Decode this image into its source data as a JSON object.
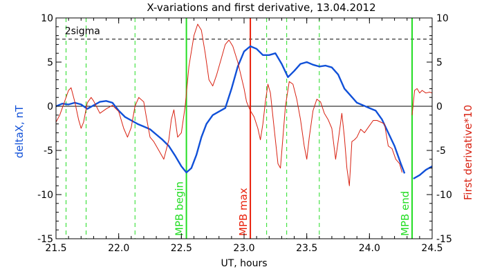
{
  "chart_data": {
    "type": "line",
    "title": "X-variations and first derivative, 13.04.2012",
    "xlabel": "UT, hours",
    "ylabel_left": "deltaX, nT",
    "ylabel_right": "First derivative*10",
    "xlim": [
      21.5,
      24.5
    ],
    "ylim": [
      -15,
      10
    ],
    "x_ticks": [
      "21.5",
      "22.0",
      "22.5",
      "23.0",
      "23.5",
      "24.0",
      "24.5"
    ],
    "y_ticks": [
      "-15",
      "-10",
      "-5",
      "0",
      "5",
      "10"
    ],
    "sigma_label": "2sigma",
    "sigma_value": 7.6,
    "colors": {
      "deltaX": "#1050d8",
      "derivative": "#d82010",
      "mpb": "#22dd22",
      "mpb_max": "#e8200a",
      "zero_line": "#000000",
      "sigma_line": "#000000"
    },
    "dashed_green_x": [
      21.58,
      21.74,
      22.13,
      23.18,
      23.34,
      23.6
    ],
    "markers": [
      {
        "x": 22.54,
        "label": "MPB begin",
        "color": "#22dd22"
      },
      {
        "x": 23.05,
        "label": "MPB max",
        "color": "#e8200a"
      },
      {
        "x": 24.34,
        "label": "MPB end",
        "color": "#22dd22"
      }
    ],
    "series": [
      {
        "name": "deltaX, nT",
        "color": "#1050d8",
        "segments": [
          [
            [
              21.5,
              0.0
            ],
            [
              21.55,
              0.3
            ],
            [
              21.6,
              0.2
            ],
            [
              21.65,
              0.4
            ],
            [
              21.7,
              0.2
            ],
            [
              21.75,
              -0.3
            ],
            [
              21.8,
              0.1
            ],
            [
              21.85,
              0.5
            ],
            [
              21.9,
              0.6
            ],
            [
              21.95,
              0.4
            ],
            [
              22.0,
              -0.5
            ],
            [
              22.05,
              -1.2
            ],
            [
              22.1,
              -1.6
            ],
            [
              22.15,
              -2.0
            ],
            [
              22.2,
              -2.3
            ],
            [
              22.25,
              -2.6
            ],
            [
              22.3,
              -3.2
            ],
            [
              22.35,
              -3.8
            ],
            [
              22.4,
              -4.5
            ],
            [
              22.45,
              -5.6
            ],
            [
              22.5,
              -6.8
            ],
            [
              22.54,
              -7.5
            ],
            [
              22.58,
              -7.0
            ],
            [
              22.62,
              -5.5
            ],
            [
              22.66,
              -3.5
            ],
            [
              22.7,
              -2.0
            ],
            [
              22.75,
              -1.0
            ],
            [
              22.8,
              -0.6
            ],
            [
              22.85,
              -0.2
            ],
            [
              22.9,
              2.0
            ],
            [
              22.95,
              4.5
            ],
            [
              23.0,
              6.2
            ],
            [
              23.05,
              6.8
            ],
            [
              23.1,
              6.5
            ],
            [
              23.15,
              5.8
            ],
            [
              23.2,
              5.8
            ],
            [
              23.25,
              6.0
            ],
            [
              23.3,
              4.8
            ],
            [
              23.35,
              3.3
            ],
            [
              23.4,
              4.0
            ],
            [
              23.45,
              4.8
            ],
            [
              23.5,
              5.0
            ],
            [
              23.55,
              4.7
            ],
            [
              23.6,
              4.5
            ],
            [
              23.65,
              4.6
            ],
            [
              23.7,
              4.4
            ],
            [
              23.75,
              3.6
            ],
            [
              23.8,
              2.0
            ],
            [
              23.85,
              1.2
            ],
            [
              23.9,
              0.4
            ],
            [
              23.95,
              0.1
            ],
            [
              24.0,
              -0.2
            ],
            [
              24.05,
              -0.5
            ],
            [
              24.1,
              -1.5
            ],
            [
              24.15,
              -3.0
            ],
            [
              24.2,
              -4.5
            ],
            [
              24.25,
              -6.5
            ],
            [
              24.28,
              -7.6
            ]
          ],
          [
            [
              24.35,
              -8.2
            ],
            [
              24.4,
              -7.8
            ],
            [
              24.45,
              -7.2
            ],
            [
              24.5,
              -6.8
            ]
          ]
        ]
      },
      {
        "name": "First derivative*10",
        "color": "#d82010",
        "segments": [
          [
            [
              21.5,
              -1.8
            ],
            [
              21.53,
              -1.0
            ],
            [
              21.56,
              0.2
            ],
            [
              21.6,
              1.8
            ],
            [
              21.62,
              2.1
            ],
            [
              21.65,
              0.5
            ],
            [
              21.68,
              -1.5
            ],
            [
              21.7,
              -2.5
            ],
            [
              21.72,
              -1.8
            ],
            [
              21.75,
              0.4
            ],
            [
              21.78,
              1.0
            ],
            [
              21.8,
              0.6
            ],
            [
              21.85,
              -0.8
            ],
            [
              21.9,
              -0.3
            ],
            [
              21.95,
              0.1
            ],
            [
              22.0,
              -0.6
            ],
            [
              22.04,
              -2.5
            ],
            [
              22.07,
              -3.5
            ],
            [
              22.1,
              -2.4
            ],
            [
              22.13,
              0.0
            ],
            [
              22.16,
              1.0
            ],
            [
              22.2,
              0.5
            ],
            [
              22.22,
              -1.2
            ],
            [
              22.25,
              -3.5
            ],
            [
              22.28,
              -4.0
            ],
            [
              22.32,
              -5.0
            ],
            [
              22.36,
              -6.0
            ],
            [
              22.4,
              -3.8
            ],
            [
              22.42,
              -1.5
            ],
            [
              22.44,
              -0.4
            ],
            [
              22.47,
              -3.5
            ],
            [
              22.5,
              -3.0
            ],
            [
              22.53,
              0.0
            ],
            [
              22.56,
              4.5
            ],
            [
              22.6,
              8.0
            ],
            [
              22.63,
              9.3
            ],
            [
              22.66,
              8.6
            ],
            [
              22.69,
              6.0
            ],
            [
              22.72,
              3.0
            ],
            [
              22.75,
              2.3
            ],
            [
              22.78,
              3.5
            ],
            [
              22.82,
              5.5
            ],
            [
              22.85,
              7.0
            ],
            [
              22.88,
              7.5
            ],
            [
              22.91,
              6.8
            ],
            [
              22.95,
              5.0
            ],
            [
              23.0,
              2.0
            ],
            [
              23.02,
              0.5
            ],
            [
              23.05,
              -0.5
            ],
            [
              23.08,
              -1.2
            ],
            [
              23.11,
              -2.5
            ],
            [
              23.13,
              -3.8
            ],
            [
              23.15,
              -2.0
            ],
            [
              23.17,
              0.5
            ],
            [
              23.19,
              2.5
            ],
            [
              23.21,
              1.5
            ],
            [
              23.24,
              -2.5
            ],
            [
              23.27,
              -6.5
            ],
            [
              23.29,
              -7.0
            ],
            [
              23.31,
              -3.5
            ],
            [
              23.33,
              0.0
            ],
            [
              23.36,
              2.8
            ],
            [
              23.39,
              2.5
            ],
            [
              23.42,
              0.8
            ],
            [
              23.45,
              -1.5
            ],
            [
              23.48,
              -4.5
            ],
            [
              23.5,
              -6.0
            ],
            [
              23.52,
              -3.5
            ],
            [
              23.55,
              -0.5
            ],
            [
              23.58,
              0.8
            ],
            [
              23.61,
              0.5
            ],
            [
              23.64,
              -0.8
            ],
            [
              23.67,
              -1.5
            ],
            [
              23.7,
              -2.5
            ],
            [
              23.73,
              -6.0
            ],
            [
              23.75,
              -4.0
            ],
            [
              23.78,
              -0.8
            ],
            [
              23.8,
              -3.5
            ],
            [
              23.82,
              -7.0
            ],
            [
              23.84,
              -9.0
            ],
            [
              23.86,
              -4.0
            ],
            [
              23.88,
              -3.8
            ],
            [
              23.9,
              -3.5
            ],
            [
              23.93,
              -2.6
            ],
            [
              23.96,
              -3.0
            ],
            [
              24.0,
              -2.2
            ],
            [
              24.03,
              -1.6
            ],
            [
              24.06,
              -1.6
            ],
            [
              24.09,
              -1.8
            ],
            [
              24.12,
              -2.0
            ],
            [
              24.15,
              -4.5
            ],
            [
              24.18,
              -4.8
            ],
            [
              24.21,
              -6.0
            ],
            [
              24.24,
              -6.5
            ],
            [
              24.26,
              -7.5
            ]
          ],
          [
            [
              24.34,
              -1.0
            ],
            [
              24.36,
              1.8
            ],
            [
              24.38,
              2.0
            ],
            [
              24.4,
              1.5
            ],
            [
              24.42,
              1.8
            ],
            [
              24.45,
              1.5
            ],
            [
              24.48,
              1.6
            ],
            [
              24.5,
              1.5
            ]
          ]
        ]
      }
    ]
  }
}
